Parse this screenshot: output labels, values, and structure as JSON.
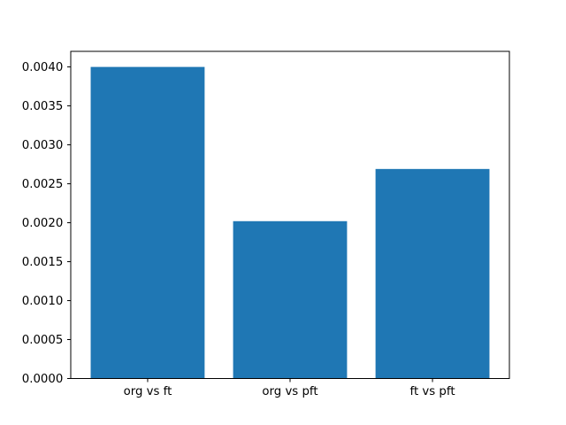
{
  "figure": {
    "background": "#ffffff"
  },
  "chart_data": {
    "type": "bar",
    "title": "",
    "xlabel": "",
    "ylabel": "",
    "categories": [
      "org vs ft",
      "org vs pft",
      "ft vs pft"
    ],
    "values": [
      0.004,
      0.00202,
      0.00269
    ],
    "ylim": [
      0,
      0.0042
    ],
    "ytick_labels": [
      "0.0000",
      "0.0005",
      "0.0010",
      "0.0015",
      "0.0020",
      "0.0025",
      "0.0030",
      "0.0035",
      "0.0040"
    ],
    "bar_color": "#1f77b4",
    "axis_color": "#000000",
    "text_color": "#000000",
    "bar_width_fraction": 0.8,
    "grid": false,
    "legend_position": "none"
  }
}
